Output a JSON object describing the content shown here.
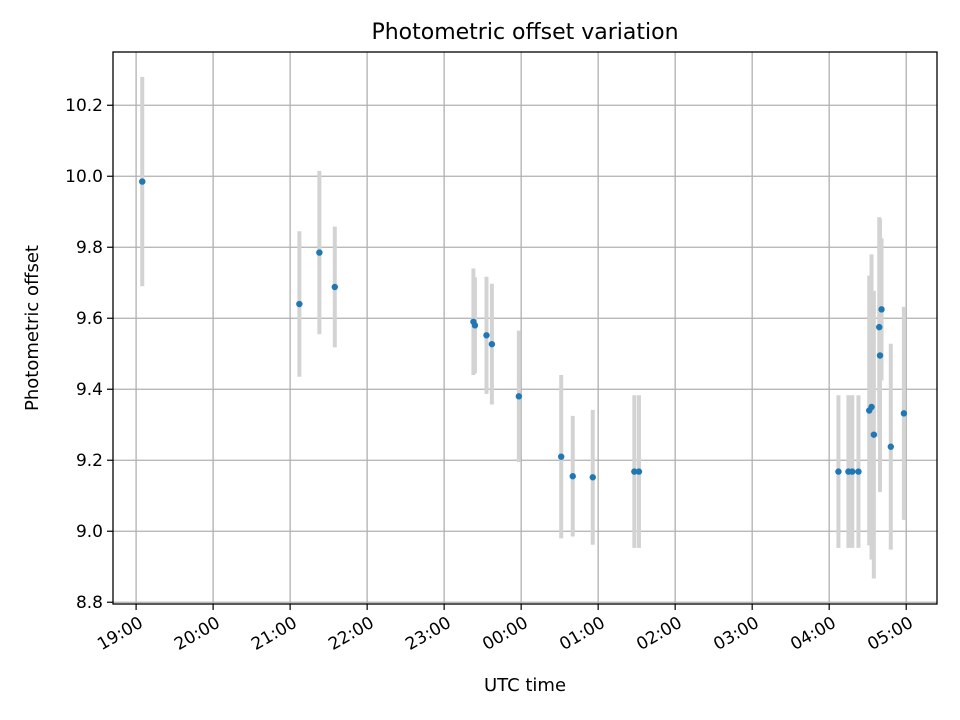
{
  "chart_data": {
    "type": "scatter",
    "title": "Photometric offset variation",
    "xlabel": "UTC time",
    "ylabel": "Photometric offset",
    "x_unit": "hours",
    "xlim": [
      18.7,
      29.4
    ],
    "ylim": [
      8.795,
      10.35
    ],
    "x_ticks": [
      {
        "value": 19,
        "label": "19:00"
      },
      {
        "value": 20,
        "label": "20:00"
      },
      {
        "value": 21,
        "label": "21:00"
      },
      {
        "value": 22,
        "label": "22:00"
      },
      {
        "value": 23,
        "label": "23:00"
      },
      {
        "value": 24,
        "label": "00:00"
      },
      {
        "value": 25,
        "label": "01:00"
      },
      {
        "value": 26,
        "label": "02:00"
      },
      {
        "value": 27,
        "label": "03:00"
      },
      {
        "value": 28,
        "label": "04:00"
      },
      {
        "value": 29,
        "label": "05:00"
      }
    ],
    "y_ticks": [
      {
        "value": 8.8,
        "label": "8.8"
      },
      {
        "value": 9.0,
        "label": "9.0"
      },
      {
        "value": 9.2,
        "label": "9.2"
      },
      {
        "value": 9.4,
        "label": "9.4"
      },
      {
        "value": 9.6,
        "label": "9.6"
      },
      {
        "value": 9.8,
        "label": "9.8"
      },
      {
        "value": 10.0,
        "label": "10.0"
      },
      {
        "value": 10.2,
        "label": "10.2"
      }
    ],
    "grid": true,
    "marker_color": "#1f77b4",
    "errorbar_color": "#d3d3d3",
    "points": [
      {
        "x": 19.08,
        "y": 9.985,
        "yerr": 0.295
      },
      {
        "x": 21.12,
        "y": 9.64,
        "yerr": 0.205
      },
      {
        "x": 21.38,
        "y": 9.785,
        "yerr": 0.23
      },
      {
        "x": 21.58,
        "y": 9.688,
        "yerr": 0.17
      },
      {
        "x": 23.38,
        "y": 9.59,
        "yerr": 0.15
      },
      {
        "x": 23.4,
        "y": 9.58,
        "yerr": 0.135
      },
      {
        "x": 23.55,
        "y": 9.552,
        "yerr": 0.165
      },
      {
        "x": 23.62,
        "y": 9.527,
        "yerr": 0.17
      },
      {
        "x": 23.97,
        "y": 9.38,
        "yerr": 0.185
      },
      {
        "x": 24.52,
        "y": 9.21,
        "yerr": 0.23
      },
      {
        "x": 24.67,
        "y": 9.155,
        "yerr": 0.17
      },
      {
        "x": 24.93,
        "y": 9.152,
        "yerr": 0.19
      },
      {
        "x": 25.47,
        "y": 9.168,
        "yerr": 0.215
      },
      {
        "x": 25.53,
        "y": 9.168,
        "yerr": 0.215
      },
      {
        "x": 28.12,
        "y": 9.168,
        "yerr": 0.215
      },
      {
        "x": 28.25,
        "y": 9.168,
        "yerr": 0.215
      },
      {
        "x": 28.3,
        "y": 9.168,
        "yerr": 0.215
      },
      {
        "x": 28.38,
        "y": 9.168,
        "yerr": 0.215
      },
      {
        "x": 28.52,
        "y": 9.34,
        "yerr": 0.38
      },
      {
        "x": 28.55,
        "y": 9.35,
        "yerr": 0.43
      },
      {
        "x": 28.58,
        "y": 9.272,
        "yerr": 0.405
      },
      {
        "x": 28.65,
        "y": 9.575,
        "yerr": 0.31
      },
      {
        "x": 28.66,
        "y": 9.495,
        "yerr": 0.385
      },
      {
        "x": 28.68,
        "y": 9.625,
        "yerr": 0.2
      },
      {
        "x": 28.8,
        "y": 9.238,
        "yerr": 0.29
      },
      {
        "x": 28.97,
        "y": 9.332,
        "yerr": 0.3
      }
    ]
  }
}
